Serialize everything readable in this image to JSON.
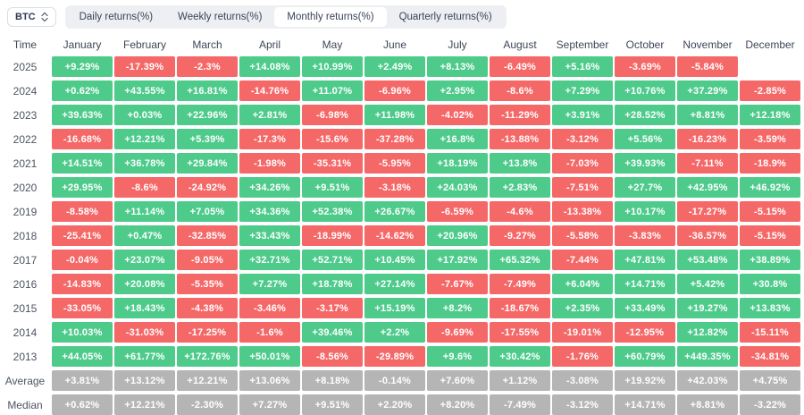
{
  "selector": {
    "label": "BTC"
  },
  "tabs": [
    {
      "label": "Daily returns(%)",
      "active": false
    },
    {
      "label": "Weekly returns(%)",
      "active": false
    },
    {
      "label": "Monthly returns(%)",
      "active": true
    },
    {
      "label": "Quarterly returns(%)",
      "active": false
    }
  ],
  "colors": {
    "positive": "#4ecb8b",
    "negative": "#f56868",
    "summary": "#b5b5b5",
    "tabbar_bg": "#edeff3"
  },
  "chart_data": {
    "type": "heatmap",
    "title": "BTC Monthly returns(%)",
    "columns": [
      "Time",
      "January",
      "February",
      "March",
      "April",
      "May",
      "June",
      "July",
      "August",
      "September",
      "October",
      "November",
      "December"
    ],
    "rows": [
      {
        "label": "2025",
        "summary": false,
        "values": [
          "+9.29%",
          "-17.39%",
          "-2.3%",
          "+14.08%",
          "+10.99%",
          "+2.49%",
          "+8.13%",
          "-6.49%",
          "+5.16%",
          "-3.69%",
          "-5.84%",
          ""
        ]
      },
      {
        "label": "2024",
        "summary": false,
        "values": [
          "+0.62%",
          "+43.55%",
          "+16.81%",
          "-14.76%",
          "+11.07%",
          "-6.96%",
          "+2.95%",
          "-8.6%",
          "+7.29%",
          "+10.76%",
          "+37.29%",
          "-2.85%"
        ]
      },
      {
        "label": "2023",
        "summary": false,
        "values": [
          "+39.63%",
          "+0.03%",
          "+22.96%",
          "+2.81%",
          "-6.98%",
          "+11.98%",
          "-4.02%",
          "-11.29%",
          "+3.91%",
          "+28.52%",
          "+8.81%",
          "+12.18%"
        ]
      },
      {
        "label": "2022",
        "summary": false,
        "values": [
          "-16.68%",
          "+12.21%",
          "+5.39%",
          "-17.3%",
          "-15.6%",
          "-37.28%",
          "+16.8%",
          "-13.88%",
          "-3.12%",
          "+5.56%",
          "-16.23%",
          "-3.59%"
        ]
      },
      {
        "label": "2021",
        "summary": false,
        "values": [
          "+14.51%",
          "+36.78%",
          "+29.84%",
          "-1.98%",
          "-35.31%",
          "-5.95%",
          "+18.19%",
          "+13.8%",
          "-7.03%",
          "+39.93%",
          "-7.11%",
          "-18.9%"
        ]
      },
      {
        "label": "2020",
        "summary": false,
        "values": [
          "+29.95%",
          "-8.6%",
          "-24.92%",
          "+34.26%",
          "+9.51%",
          "-3.18%",
          "+24.03%",
          "+2.83%",
          "-7.51%",
          "+27.7%",
          "+42.95%",
          "+46.92%"
        ]
      },
      {
        "label": "2019",
        "summary": false,
        "values": [
          "-8.58%",
          "+11.14%",
          "+7.05%",
          "+34.36%",
          "+52.38%",
          "+26.67%",
          "-6.59%",
          "-4.6%",
          "-13.38%",
          "+10.17%",
          "-17.27%",
          "-5.15%"
        ]
      },
      {
        "label": "2018",
        "summary": false,
        "values": [
          "-25.41%",
          "+0.47%",
          "-32.85%",
          "+33.43%",
          "-18.99%",
          "-14.62%",
          "+20.96%",
          "-9.27%",
          "-5.58%",
          "-3.83%",
          "-36.57%",
          "-5.15%"
        ]
      },
      {
        "label": "2017",
        "summary": false,
        "values": [
          "-0.04%",
          "+23.07%",
          "-9.05%",
          "+32.71%",
          "+52.71%",
          "+10.45%",
          "+17.92%",
          "+65.32%",
          "-7.44%",
          "+47.81%",
          "+53.48%",
          "+38.89%"
        ]
      },
      {
        "label": "2016",
        "summary": false,
        "values": [
          "-14.83%",
          "+20.08%",
          "-5.35%",
          "+7.27%",
          "+18.78%",
          "+27.14%",
          "-7.67%",
          "-7.49%",
          "+6.04%",
          "+14.71%",
          "+5.42%",
          "+30.8%"
        ]
      },
      {
        "label": "2015",
        "summary": false,
        "values": [
          "-33.05%",
          "+18.43%",
          "-4.38%",
          "-3.46%",
          "-3.17%",
          "+15.19%",
          "+8.2%",
          "-18.67%",
          "+2.35%",
          "+33.49%",
          "+19.27%",
          "+13.83%"
        ]
      },
      {
        "label": "2014",
        "summary": false,
        "values": [
          "+10.03%",
          "-31.03%",
          "-17.25%",
          "-1.6%",
          "+39.46%",
          "+2.2%",
          "-9.69%",
          "-17.55%",
          "-19.01%",
          "-12.95%",
          "+12.82%",
          "-15.11%"
        ]
      },
      {
        "label": "2013",
        "summary": false,
        "values": [
          "+44.05%",
          "+61.77%",
          "+172.76%",
          "+50.01%",
          "-8.56%",
          "-29.89%",
          "+9.6%",
          "+30.42%",
          "-1.76%",
          "+60.79%",
          "+449.35%",
          "-34.81%"
        ]
      },
      {
        "label": "Average",
        "summary": true,
        "values": [
          "+3.81%",
          "+13.12%",
          "+12.21%",
          "+13.06%",
          "+8.18%",
          "-0.14%",
          "+7.60%",
          "+1.12%",
          "-3.08%",
          "+19.92%",
          "+42.03%",
          "+4.75%"
        ]
      },
      {
        "label": "Median",
        "summary": true,
        "values": [
          "+0.62%",
          "+12.21%",
          "-2.30%",
          "+7.27%",
          "+9.51%",
          "+2.20%",
          "+8.20%",
          "-7.49%",
          "-3.12%",
          "+14.71%",
          "+8.81%",
          "-3.22%"
        ]
      }
    ]
  }
}
